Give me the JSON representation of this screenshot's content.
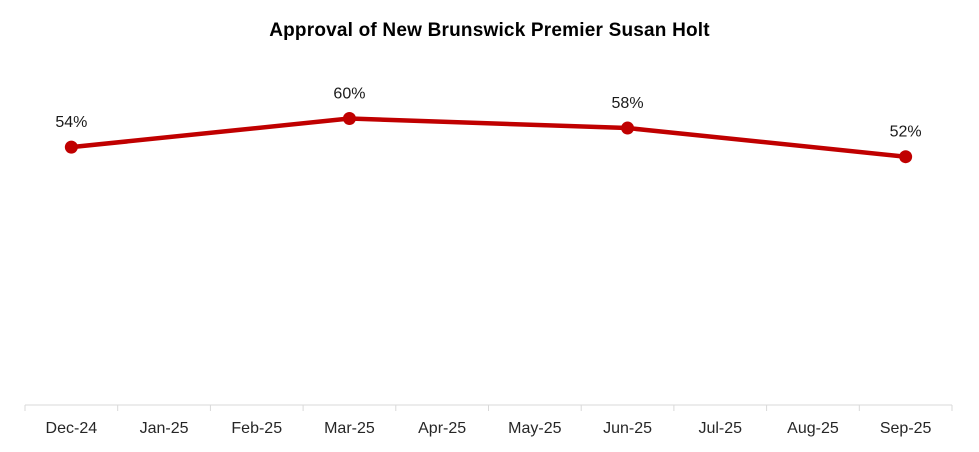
{
  "page": {
    "background_color": "#FFFFFF"
  },
  "chart_data": {
    "type": "line",
    "title": "Approval of New Brunswick Premier Susan Holt",
    "categories": [
      "Dec-24",
      "Jan-25",
      "Feb-25",
      "Mar-25",
      "Apr-25",
      "May-25",
      "Jun-25",
      "Jul-25",
      "Aug-25",
      "Sep-25"
    ],
    "series": [
      {
        "values": [
          54,
          null,
          null,
          60,
          null,
          null,
          58,
          null,
          null,
          52
        ],
        "data_labels": [
          "54%",
          null,
          null,
          "60%",
          null,
          null,
          "58%",
          null,
          null,
          "52%"
        ],
        "color": "#C00000",
        "marker": "circle"
      }
    ],
    "xlabel": "",
    "ylabel": "",
    "ylim": [
      0,
      80
    ],
    "grid": false,
    "legend": "none",
    "y_axis_visible": false,
    "axis_color": "#D9D9D9",
    "tick_label_color": "#262626",
    "data_label_color": "#1A1A1A",
    "title_color": "#000000"
  }
}
